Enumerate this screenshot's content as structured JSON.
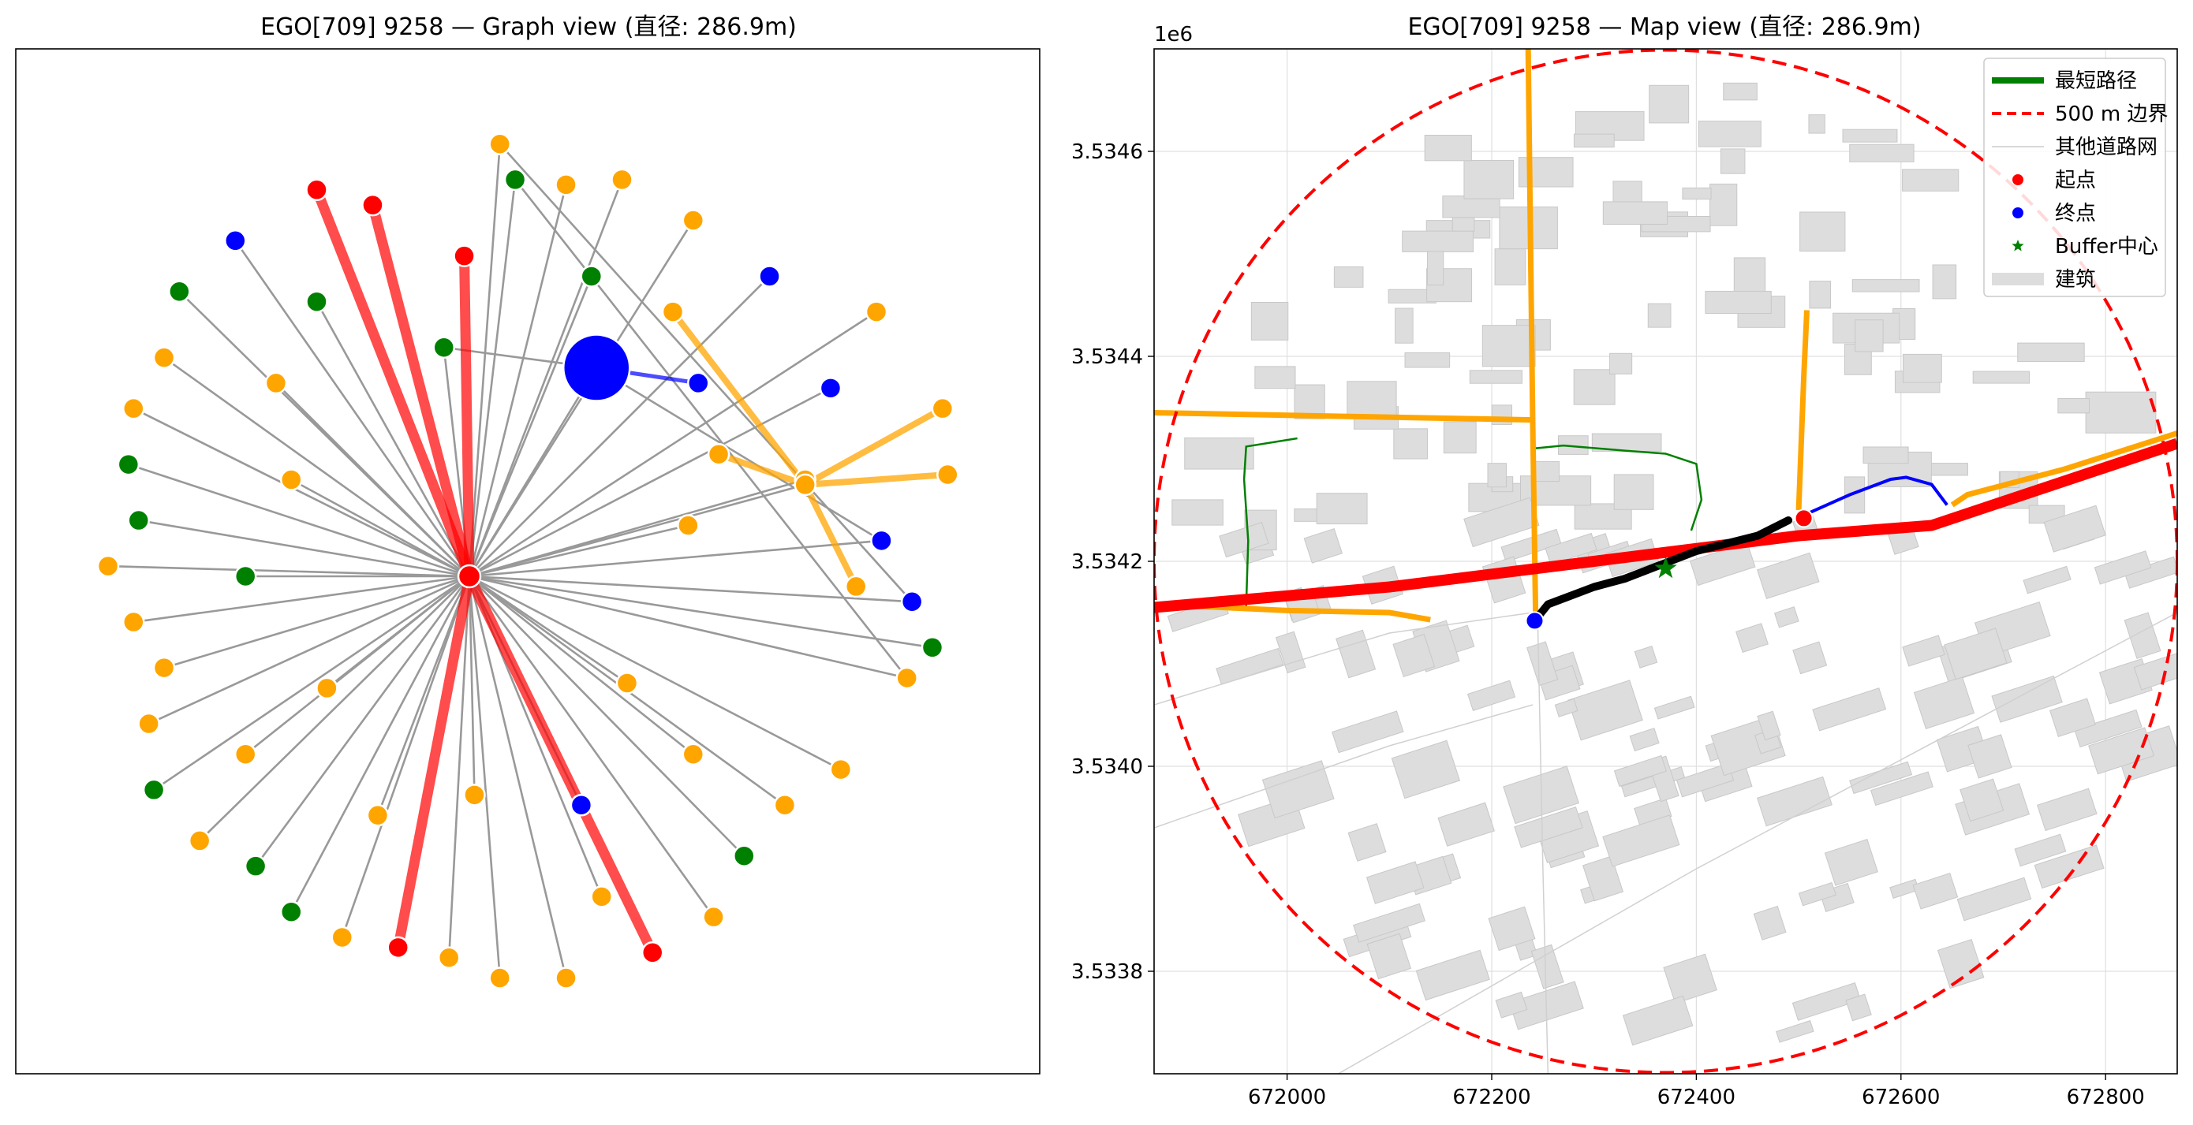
{
  "chart_data": [
    {
      "type": "network",
      "title": "EGO[709] 9258 — Graph view (直径: 286.9m)",
      "colors": {
        "red": "#ff0000",
        "blue": "#0000ff",
        "green": "#008000",
        "orange": "#ffa500",
        "edge": "#999999"
      },
      "center": {
        "x": 0,
        "y": 0
      },
      "nodes": [
        {
          "id": "n1",
          "x": 0.06,
          "y": 0.85,
          "c": "orange"
        },
        {
          "id": "n2",
          "x": -0.3,
          "y": 0.76,
          "c": "red"
        },
        {
          "id": "n3",
          "x": -0.19,
          "y": 0.73,
          "c": "red"
        },
        {
          "id": "n4",
          "x": -0.01,
          "y": 0.63,
          "c": "red"
        },
        {
          "id": "n5",
          "x": 0.09,
          "y": 0.78,
          "c": "green"
        },
        {
          "id": "n6",
          "x": 0.19,
          "y": 0.77,
          "c": "orange"
        },
        {
          "id": "n7",
          "x": 0.3,
          "y": 0.78,
          "c": "orange"
        },
        {
          "id": "n8",
          "x": 0.44,
          "y": 0.7,
          "c": "orange"
        },
        {
          "id": "n9",
          "x": -0.46,
          "y": 0.66,
          "c": "blue"
        },
        {
          "id": "n10",
          "x": -0.57,
          "y": 0.56,
          "c": "green"
        },
        {
          "id": "n11",
          "x": -0.3,
          "y": 0.54,
          "c": "green"
        },
        {
          "id": "n12",
          "x": 0.24,
          "y": 0.59,
          "c": "green"
        },
        {
          "id": "n13",
          "x": 0.59,
          "y": 0.59,
          "c": "blue"
        },
        {
          "id": "n14",
          "x": 0.4,
          "y": 0.52,
          "c": "orange"
        },
        {
          "id": "n15",
          "x": 0.8,
          "y": 0.52,
          "c": "orange"
        },
        {
          "id": "n16",
          "x": -0.05,
          "y": 0.45,
          "c": "green"
        },
        {
          "id": "n17",
          "x": 0.25,
          "y": 0.41,
          "c": "blue",
          "big": true
        },
        {
          "id": "n18",
          "x": 0.45,
          "y": 0.38,
          "c": "blue"
        },
        {
          "id": "n19",
          "x": 0.71,
          "y": 0.37,
          "c": "blue"
        },
        {
          "id": "n20",
          "x": -0.6,
          "y": 0.43,
          "c": "orange"
        },
        {
          "id": "n21",
          "x": -0.38,
          "y": 0.38,
          "c": "orange"
        },
        {
          "id": "n22",
          "x": -0.66,
          "y": 0.33,
          "c": "orange"
        },
        {
          "id": "n23",
          "x": 0.93,
          "y": 0.33,
          "c": "orange"
        },
        {
          "id": "n24",
          "x": 0.49,
          "y": 0.24,
          "c": "orange"
        },
        {
          "id": "n25",
          "x": -0.67,
          "y": 0.22,
          "c": "green"
        },
        {
          "id": "n26",
          "x": -0.35,
          "y": 0.19,
          "c": "orange"
        },
        {
          "id": "n27",
          "x": 0.66,
          "y": 0.19,
          "c": "orange"
        },
        {
          "id": "n28",
          "x": 0.94,
          "y": 0.2,
          "c": "orange"
        },
        {
          "id": "n29",
          "x": -0.65,
          "y": 0.11,
          "c": "green"
        },
        {
          "id": "n30",
          "x": 0.43,
          "y": 0.1,
          "c": "orange"
        },
        {
          "id": "n31",
          "x": 0.81,
          "y": 0.07,
          "c": "blue"
        },
        {
          "id": "n32",
          "x": -0.71,
          "y": 0.02,
          "c": "orange"
        },
        {
          "id": "n33",
          "x": -0.44,
          "y": 0.0,
          "c": "green"
        },
        {
          "id": "n34",
          "x": 0.76,
          "y": -0.02,
          "c": "orange"
        },
        {
          "id": "n35",
          "x": 0.87,
          "y": -0.05,
          "c": "blue"
        },
        {
          "id": "n36",
          "x": -0.66,
          "y": -0.09,
          "c": "orange"
        },
        {
          "id": "n37",
          "x": 0.91,
          "y": -0.14,
          "c": "green"
        },
        {
          "id": "n38",
          "x": -0.6,
          "y": -0.18,
          "c": "orange"
        },
        {
          "id": "n39",
          "x": 0.86,
          "y": -0.2,
          "c": "orange"
        },
        {
          "id": "n40",
          "x": -0.28,
          "y": -0.22,
          "c": "orange"
        },
        {
          "id": "n41",
          "x": 0.31,
          "y": -0.21,
          "c": "orange"
        },
        {
          "id": "n42",
          "x": -0.63,
          "y": -0.29,
          "c": "orange"
        },
        {
          "id": "n43",
          "x": -0.44,
          "y": -0.35,
          "c": "orange"
        },
        {
          "id": "n44",
          "x": 0.44,
          "y": -0.35,
          "c": "orange"
        },
        {
          "id": "n45",
          "x": 0.73,
          "y": -0.38,
          "c": "orange"
        },
        {
          "id": "n46",
          "x": -0.62,
          "y": -0.42,
          "c": "green"
        },
        {
          "id": "n47",
          "x": 0.01,
          "y": -0.43,
          "c": "orange"
        },
        {
          "id": "n48",
          "x": 0.22,
          "y": -0.45,
          "c": "blue"
        },
        {
          "id": "n49",
          "x": 0.62,
          "y": -0.45,
          "c": "orange"
        },
        {
          "id": "n50",
          "x": -0.18,
          "y": -0.47,
          "c": "orange"
        },
        {
          "id": "n51",
          "x": -0.53,
          "y": -0.52,
          "c": "orange"
        },
        {
          "id": "n52",
          "x": 0.54,
          "y": -0.55,
          "c": "green"
        },
        {
          "id": "n53",
          "x": -0.42,
          "y": -0.57,
          "c": "green"
        },
        {
          "id": "n54",
          "x": 0.26,
          "y": -0.63,
          "c": "orange"
        },
        {
          "id": "n55",
          "x": -0.35,
          "y": -0.66,
          "c": "green"
        },
        {
          "id": "n56",
          "x": 0.48,
          "y": -0.67,
          "c": "orange"
        },
        {
          "id": "n57",
          "x": -0.25,
          "y": -0.71,
          "c": "orange"
        },
        {
          "id": "n58",
          "x": -0.14,
          "y": -0.73,
          "c": "red"
        },
        {
          "id": "n59",
          "x": -0.04,
          "y": -0.75,
          "c": "orange"
        },
        {
          "id": "n60",
          "x": 0.06,
          "y": -0.79,
          "c": "orange"
        },
        {
          "id": "n61",
          "x": 0.19,
          "y": -0.79,
          "c": "orange"
        },
        {
          "id": "n62",
          "x": 0.36,
          "y": -0.74,
          "c": "red"
        },
        {
          "id": "n63",
          "x": 0.66,
          "y": 0.18,
          "c": "orange",
          "hub": true
        }
      ],
      "red_edges": [
        "n2",
        "n3",
        "n4",
        "n58",
        "n62"
      ],
      "blue_edge": [
        "n17",
        "n18"
      ],
      "orange_edges": [
        [
          "n63",
          "n14"
        ],
        [
          "n63",
          "n23"
        ],
        [
          "n63",
          "n28"
        ],
        [
          "n63",
          "n24"
        ],
        [
          "n63",
          "n34"
        ]
      ],
      "gray_extra_edges": [
        [
          "n1",
          "n35"
        ],
        [
          "n5",
          "n39"
        ],
        [
          "n17",
          "n31"
        ],
        [
          "n16",
          "n17"
        ]
      ]
    },
    {
      "type": "map",
      "title": "EGO[709] 9258 — Map view (直径: 286.9m)",
      "xlabel": "",
      "ylabel": "",
      "y_offset_label": "1e6",
      "xlim": [
        671870,
        672870
      ],
      "ylim": [
        3533700,
        3534700
      ],
      "x_ticks": [
        672000,
        672200,
        672400,
        672600,
        672800
      ],
      "y_ticks": [
        3533800,
        3534000,
        3534200,
        3534400,
        3534600
      ],
      "y_tick_labels": [
        "3.5338",
        "3.5340",
        "3.5342",
        "3.5344",
        "3.5346"
      ],
      "grid": true,
      "circle": {
        "cx": 672370,
        "cy": 3534200,
        "r": 500
      },
      "legend_position": "top-right",
      "legend": [
        "最短路径",
        "500 m 边界",
        "其他道路网",
        "起点",
        "终点",
        "Buffer中心",
        "建筑"
      ],
      "colors": {
        "red": "#ff0000",
        "orange": "#ffa500",
        "black": "#000000",
        "blue": "#0000ff",
        "green": "#008000",
        "building": "#dddddd"
      },
      "red_road": [
        [
          671870,
          3534155
        ],
        [
          672100,
          3534175
        ],
        [
          672300,
          3534200
        ],
        [
          672500,
          3534225
        ],
        [
          672630,
          3534235
        ],
        [
          672870,
          3534315
        ]
      ],
      "orange_roads": [
        [
          [
            672235,
            3534750
          ],
          [
            672240,
            3534340
          ],
          [
            672243,
            3534140
          ]
        ],
        [
          [
            671870,
            3534345
          ],
          [
            672240,
            3534338
          ]
        ],
        [
          [
            671870,
            3534158
          ],
          [
            672000,
            3534152
          ],
          [
            672100,
            3534150
          ],
          [
            672140,
            3534143
          ]
        ],
        [
          [
            672500,
            3534250
          ],
          [
            672505,
            3534380
          ],
          [
            672508,
            3534445
          ]
        ],
        [
          [
            672650,
            3534255
          ],
          [
            672665,
            3534265
          ],
          [
            672760,
            3534290
          ],
          [
            672870,
            3534325
          ]
        ]
      ],
      "black_path": [
        [
          672242,
          3534142
        ],
        [
          672255,
          3534158
        ],
        [
          672300,
          3534175
        ],
        [
          672330,
          3534183
        ],
        [
          672400,
          3534210
        ],
        [
          672460,
          3534225
        ],
        [
          672490,
          3534240
        ]
      ],
      "blue_path": [
        [
          672505,
          3534245
        ],
        [
          672550,
          3534265
        ],
        [
          672590,
          3534280
        ],
        [
          672605,
          3534282
        ],
        [
          672630,
          3534275
        ],
        [
          672645,
          3534255
        ]
      ],
      "green_path": [
        [
          671960,
          3534155
        ],
        [
          671962,
          3534220
        ],
        [
          671958,
          3534280
        ],
        [
          671960,
          3534312
        ],
        [
          672010,
          3534320
        ]
      ],
      "green_path2": [
        [
          672240,
          3534310
        ],
        [
          672270,
          3534313
        ],
        [
          672330,
          3534308
        ],
        [
          672370,
          3534305
        ],
        [
          672400,
          3534295
        ],
        [
          672405,
          3534260
        ],
        [
          672395,
          3534230
        ]
      ],
      "start": [
        672242,
        3534142
      ],
      "end": [
        672505,
        3534242
      ],
      "buffer_center": [
        672370,
        3534193
      ]
    }
  ]
}
